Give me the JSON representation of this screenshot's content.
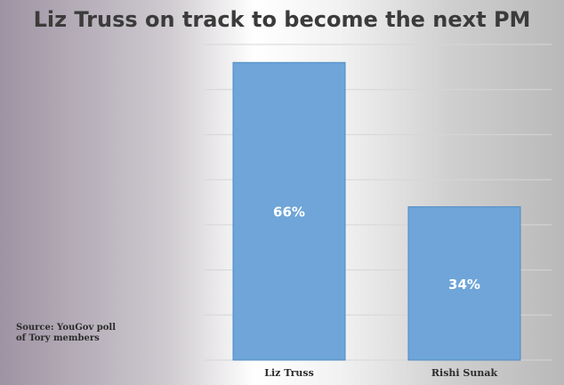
{
  "chart_data": {
    "type": "bar",
    "title": "Liz Truss on track to become the next PM",
    "categories": [
      "Liz Truss",
      "Rishi Sunak"
    ],
    "values": [
      66,
      34
    ],
    "data_labels": [
      "66%",
      "34%"
    ],
    "ylim": [
      0,
      70
    ],
    "grid": true,
    "bar_color": "#6fa5d8",
    "bar_edge_color": "#4f8cc6"
  },
  "source": {
    "line1": "Source: YouGov poll",
    "line2": "of Tory members"
  }
}
